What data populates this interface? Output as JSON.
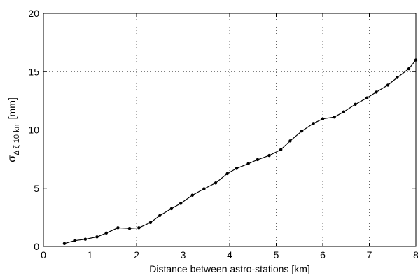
{
  "chart_data": {
    "type": "line",
    "xlabel": "Distance between astro-stations [km]",
    "ylabel": {
      "main": "σ",
      "subscript": "Δ ζ 10 km",
      "unit": " [mm]"
    },
    "xlim": [
      0,
      8
    ],
    "ylim": [
      0,
      20
    ],
    "xticks": [
      0,
      1,
      2,
      3,
      4,
      5,
      6,
      7,
      8
    ],
    "yticks": [
      0,
      5,
      10,
      15,
      20
    ],
    "grid": true,
    "series": [
      {
        "x": [
          0.45,
          0.67,
          0.9,
          1.15,
          1.35,
          1.6,
          1.85,
          2.05,
          2.3,
          2.5,
          2.75,
          2.95,
          3.2,
          3.45,
          3.7,
          3.95,
          4.15,
          4.4,
          4.6,
          4.85,
          5.1,
          5.3,
          5.55,
          5.8,
          6.0,
          6.25,
          6.45,
          6.7,
          6.95,
          7.15,
          7.4,
          7.6,
          7.85,
          8.0
        ],
        "y": [
          0.25,
          0.5,
          0.62,
          0.82,
          1.15,
          1.6,
          1.55,
          1.6,
          2.05,
          2.65,
          3.25,
          3.7,
          4.4,
          4.95,
          5.45,
          6.25,
          6.7,
          7.1,
          7.45,
          7.8,
          8.3,
          9.05,
          9.9,
          10.55,
          10.95,
          11.1,
          11.55,
          12.2,
          12.75,
          13.25,
          13.85,
          14.5,
          15.25,
          16.0
        ],
        "markers": "dot",
        "color": "#000000"
      }
    ]
  }
}
